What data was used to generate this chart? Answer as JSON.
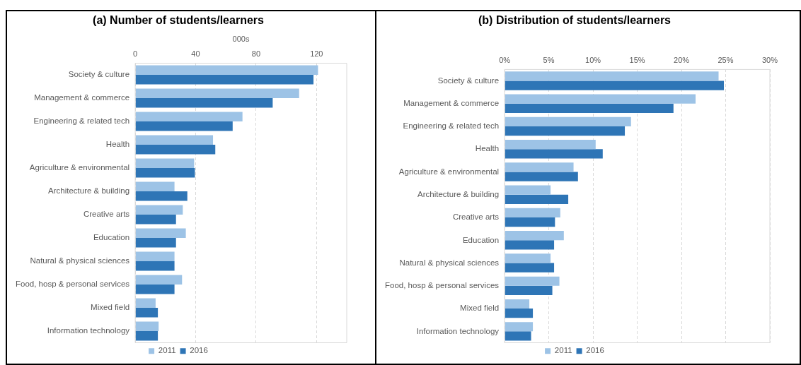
{
  "chart_data": [
    {
      "type": "bar",
      "orientation": "horizontal",
      "title": "(a) Number of students/learners",
      "xlabel": "000s",
      "categories": [
        "Society & culture",
        "Management & commerce",
        "Engineering & related tech",
        "Health",
        "Agriculture & environmental",
        "Architecture & building",
        "Creative arts",
        "Education",
        "Natural & physical sciences",
        "Food, hosp & personal services",
        "Mixed field",
        "Information technology"
      ],
      "series": [
        {
          "name": "2011",
          "color": "#9dc3e6",
          "values": [
            121,
            108.5,
            71,
            51.5,
            39,
            26,
            31.5,
            33.5,
            26,
            31,
            13.5,
            15.5
          ]
        },
        {
          "name": "2016",
          "color": "#2e75b6",
          "values": [
            118,
            91,
            64.5,
            53,
            39.5,
            34.5,
            27,
            27,
            26,
            26,
            15,
            15
          ]
        }
      ],
      "xlim": [
        0,
        140
      ],
      "xticks": [
        0,
        40,
        80,
        120
      ],
      "grid": "x",
      "legend": "bottom"
    },
    {
      "type": "bar",
      "orientation": "horizontal",
      "title": "(b) Distribution of students/learners",
      "categories": [
        "Society & culture",
        "Management & commerce",
        "Engineering & related tech",
        "Health",
        "Agriculture & environmental",
        "Architecture & building",
        "Creative arts",
        "Education",
        "Natural & physical sciences",
        "Food, hosp & personal services",
        "Mixed field",
        "Information technology"
      ],
      "series": [
        {
          "name": "2011",
          "color": "#9dc3e6",
          "values": [
            24.2,
            21.6,
            14.3,
            10.3,
            7.8,
            5.2,
            6.3,
            6.7,
            5.2,
            6.2,
            2.8,
            3.2
          ]
        },
        {
          "name": "2016",
          "color": "#2e75b6",
          "values": [
            24.8,
            19.1,
            13.6,
            11.1,
            8.3,
            7.2,
            5.7,
            5.6,
            5.6,
            5.4,
            3.2,
            3.0
          ]
        }
      ],
      "xlim": [
        0,
        30
      ],
      "xticks": [
        {
          "value": 0,
          "label": "0%"
        },
        {
          "value": 5,
          "label": "5%"
        },
        {
          "value": 10,
          "label": "10%"
        },
        {
          "value": 15,
          "label": "15%"
        },
        {
          "value": 20,
          "label": "20%"
        },
        {
          "value": 25,
          "label": "25%"
        },
        {
          "value": 30,
          "label": "30%"
        }
      ],
      "grid": "x",
      "legend": "bottom"
    }
  ]
}
